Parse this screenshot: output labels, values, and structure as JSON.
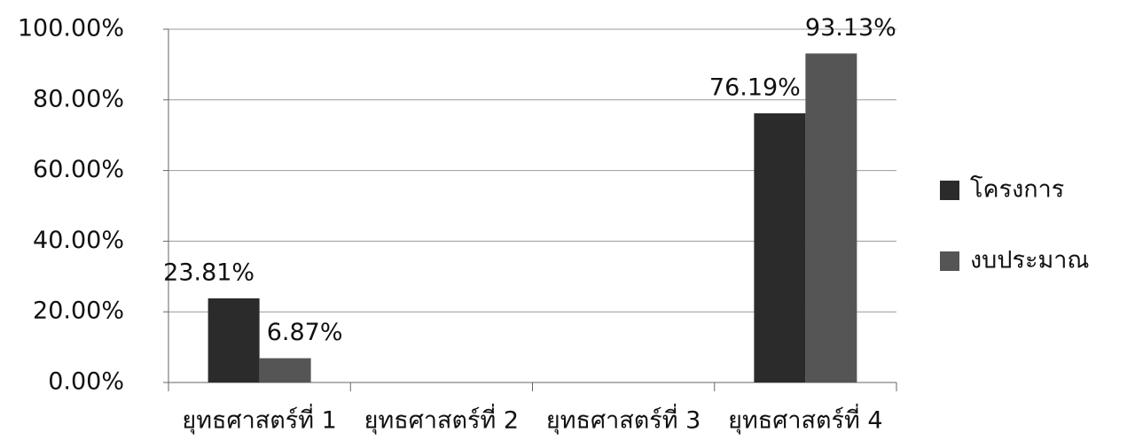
{
  "chart_data": {
    "type": "bar",
    "categories": [
      "ยุทธศาสตร์ที่ 1",
      "ยุทธศาสตร์ที่ 2",
      "ยุทธศาสตร์ที่ 3",
      "ยุทธศาสตร์ที่ 4"
    ],
    "series": [
      {
        "name": "โครงการ",
        "color": "#2b2b2b",
        "values": [
          23.81,
          null,
          null,
          76.19
        ],
        "value_labels": [
          "23.81%",
          null,
          null,
          "76.19%"
        ]
      },
      {
        "name": "งบประมาณ",
        "color": "#555555",
        "values": [
          6.87,
          null,
          null,
          93.13
        ],
        "value_labels": [
          "6.87%",
          null,
          null,
          "93.13%"
        ]
      }
    ],
    "ylim": [
      0,
      100
    ],
    "yticks": [
      {
        "value": 0,
        "label": "0.00%"
      },
      {
        "value": 20,
        "label": "20.00%"
      },
      {
        "value": 40,
        "label": "40.00%"
      },
      {
        "value": 60,
        "label": "60.00%"
      },
      {
        "value": 80,
        "label": "80.00%"
      },
      {
        "value": 100,
        "label": "100.00%"
      }
    ],
    "grid": true,
    "legend": "right"
  }
}
